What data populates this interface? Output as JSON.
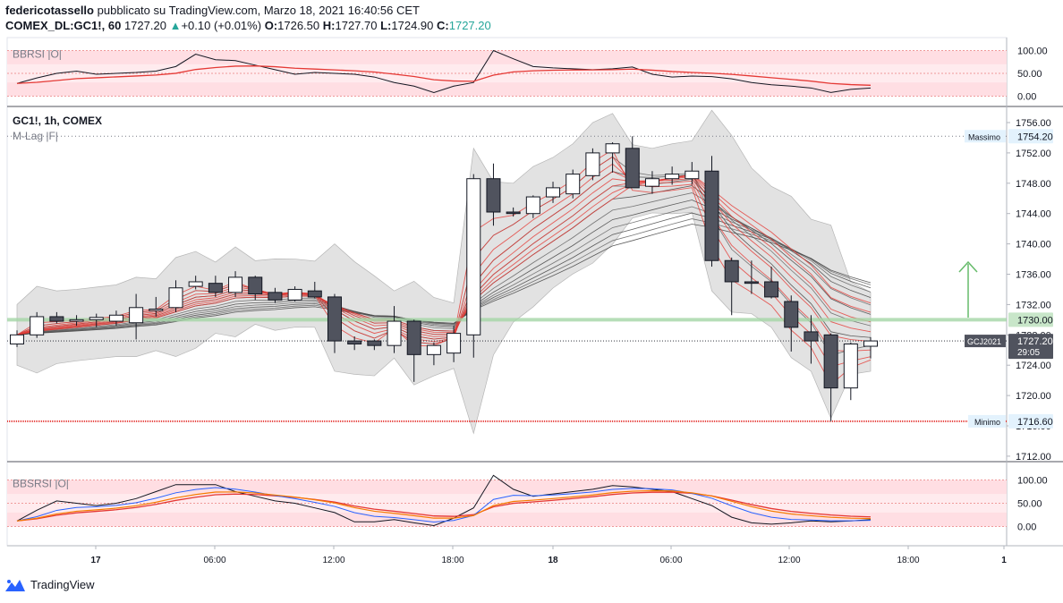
{
  "header": {
    "author": "federicotassello",
    "published": "pubblicato su TradingView.com, Marzo 18, 2021 16:40:56 CET",
    "symbol": "COMEX_DL:GC1!, 60",
    "last": "1727.20",
    "change": "+0.10 (+0.01%)",
    "open_label": "O:",
    "open": "1726.50",
    "high_label": "H:",
    "high": "1727.70",
    "low_label": "L:",
    "low": "1724.90",
    "close_label": "C:",
    "close": "1727.20"
  },
  "panes": {
    "top_indicator": {
      "label": "BBRSI |O|",
      "ticks": [
        "100.00",
        "50.00",
        "0.00"
      ]
    },
    "main": {
      "title": "GC1!, 1h, COMEX",
      "indicator": "M-Lag |F|",
      "ticks": [
        "1756.00",
        "1752.00",
        "1748.00",
        "1744.00",
        "1740.00",
        "1736.00",
        "1732.00",
        "1728.00",
        "1724.00",
        "1720.00",
        "1716.00",
        "1712.00"
      ],
      "max_label": "Massimo",
      "max_value": "1754.20",
      "min_label": "Minimo",
      "min_value": "1716.60",
      "level_value": "1730.00",
      "contract_label": "GCJ2021",
      "price_tag": "1727.20",
      "countdown": "29:05"
    },
    "bottom_indicator": {
      "label": "BBSRSI |O|",
      "ticks": [
        "100.00",
        "50.00",
        "0.00"
      ]
    }
  },
  "time_axis": [
    "17",
    "06:00",
    "12:00",
    "18:00",
    "18",
    "06:00",
    "12:00",
    "18:00",
    "1"
  ],
  "footer": {
    "brand": "TradingView"
  },
  "colors": {
    "up": "#ffffff",
    "down": "#50535e",
    "red": "#e53935",
    "green_level": "#a5d6a7",
    "band": "#d9d9d9",
    "accent": "#26a69a"
  },
  "chart_data": {
    "type": "candlestick",
    "title": "GC1!, 1h, COMEX",
    "ylim": [
      1710,
      1758
    ],
    "candles": [
      {
        "o": 1726.8,
        "h": 1728.6,
        "l": 1726.4,
        "c": 1728.0
      },
      {
        "o": 1728.0,
        "h": 1731.0,
        "l": 1727.6,
        "c": 1730.4
      },
      {
        "o": 1730.4,
        "h": 1731.0,
        "l": 1729.5,
        "c": 1729.8
      },
      {
        "o": 1729.8,
        "h": 1730.6,
        "l": 1729.2,
        "c": 1730.0
      },
      {
        "o": 1730.0,
        "h": 1730.8,
        "l": 1729.0,
        "c": 1730.3
      },
      {
        "o": 1729.8,
        "h": 1731.2,
        "l": 1729.2,
        "c": 1730.6
      },
      {
        "o": 1729.6,
        "h": 1733.4,
        "l": 1727.4,
        "c": 1731.6
      },
      {
        "o": 1731.2,
        "h": 1733.0,
        "l": 1730.4,
        "c": 1731.4
      },
      {
        "o": 1731.6,
        "h": 1735.2,
        "l": 1731.0,
        "c": 1734.2
      },
      {
        "o": 1734.4,
        "h": 1735.8,
        "l": 1734.0,
        "c": 1735.0
      },
      {
        "o": 1734.8,
        "h": 1735.8,
        "l": 1733.0,
        "c": 1733.6
      },
      {
        "o": 1733.6,
        "h": 1736.4,
        "l": 1733.0,
        "c": 1735.6
      },
      {
        "o": 1735.6,
        "h": 1735.8,
        "l": 1732.6,
        "c": 1733.4
      },
      {
        "o": 1733.6,
        "h": 1734.2,
        "l": 1732.2,
        "c": 1732.6
      },
      {
        "o": 1732.6,
        "h": 1734.4,
        "l": 1732.4,
        "c": 1734.0
      },
      {
        "o": 1733.8,
        "h": 1735.0,
        "l": 1732.8,
        "c": 1733.0
      },
      {
        "o": 1733.0,
        "h": 1733.4,
        "l": 1725.6,
        "c": 1727.2
      },
      {
        "o": 1727.2,
        "h": 1727.8,
        "l": 1726.0,
        "c": 1726.8
      },
      {
        "o": 1727.2,
        "h": 1727.4,
        "l": 1726.0,
        "c": 1726.6
      },
      {
        "o": 1726.6,
        "h": 1731.8,
        "l": 1725.6,
        "c": 1729.8
      },
      {
        "o": 1729.8,
        "h": 1730.0,
        "l": 1721.8,
        "c": 1725.4
      },
      {
        "o": 1725.4,
        "h": 1727.0,
        "l": 1724.0,
        "c": 1726.6
      },
      {
        "o": 1725.6,
        "h": 1729.2,
        "l": 1724.4,
        "c": 1728.2
      },
      {
        "o": 1728.0,
        "h": 1749.2,
        "l": 1725.0,
        "c": 1748.6
      },
      {
        "o": 1748.6,
        "h": 1750.6,
        "l": 1742.4,
        "c": 1744.2
      },
      {
        "o": 1744.2,
        "h": 1744.8,
        "l": 1743.6,
        "c": 1744.0
      },
      {
        "o": 1744.0,
        "h": 1746.4,
        "l": 1743.4,
        "c": 1746.2
      },
      {
        "o": 1746.2,
        "h": 1748.2,
        "l": 1745.4,
        "c": 1747.4
      },
      {
        "o": 1746.6,
        "h": 1749.8,
        "l": 1746.0,
        "c": 1749.2
      },
      {
        "o": 1749.0,
        "h": 1752.6,
        "l": 1748.4,
        "c": 1752.0
      },
      {
        "o": 1752.0,
        "h": 1753.4,
        "l": 1749.4,
        "c": 1753.2
      },
      {
        "o": 1752.6,
        "h": 1754.2,
        "l": 1747.4,
        "c": 1747.4
      },
      {
        "o": 1747.6,
        "h": 1749.6,
        "l": 1746.6,
        "c": 1748.6
      },
      {
        "o": 1748.6,
        "h": 1750.2,
        "l": 1747.8,
        "c": 1749.2
      },
      {
        "o": 1748.6,
        "h": 1750.8,
        "l": 1747.8,
        "c": 1749.6
      },
      {
        "o": 1749.6,
        "h": 1751.6,
        "l": 1737.0,
        "c": 1737.8
      },
      {
        "o": 1737.8,
        "h": 1738.2,
        "l": 1730.6,
        "c": 1735.0
      },
      {
        "o": 1735.0,
        "h": 1737.8,
        "l": 1733.4,
        "c": 1734.8
      },
      {
        "o": 1735.0,
        "h": 1737.0,
        "l": 1732.8,
        "c": 1733.0
      },
      {
        "o": 1732.4,
        "h": 1733.2,
        "l": 1725.8,
        "c": 1729.0
      },
      {
        "o": 1728.4,
        "h": 1730.6,
        "l": 1724.2,
        "c": 1727.2
      },
      {
        "o": 1728.0,
        "h": 1728.2,
        "l": 1716.6,
        "c": 1721.0
      },
      {
        "o": 1721.0,
        "h": 1727.0,
        "l": 1719.4,
        "c": 1726.8
      },
      {
        "o": 1726.5,
        "h": 1727.7,
        "l": 1724.9,
        "c": 1727.2
      }
    ],
    "levels": {
      "max": 1754.2,
      "min": 1716.6,
      "horizontal": 1730.0
    },
    "bbrsi_top": [
      28,
      40,
      50,
      55,
      48,
      50,
      52,
      55,
      65,
      92,
      80,
      78,
      68,
      58,
      48,
      52,
      50,
      48,
      42,
      30,
      22,
      8,
      22,
      30,
      100,
      82,
      65,
      62,
      60,
      58,
      60,
      64,
      48,
      42,
      44,
      43,
      38,
      30,
      25,
      22,
      18,
      8,
      15,
      18
    ],
    "bbsrsi_bottom": [
      12,
      35,
      55,
      50,
      45,
      50,
      60,
      75,
      90,
      90,
      90,
      75,
      65,
      55,
      50,
      40,
      30,
      10,
      10,
      15,
      8,
      2,
      18,
      40,
      110,
      80,
      65,
      70,
      75,
      80,
      88,
      85,
      80,
      75,
      60,
      45,
      20,
      8,
      5,
      8,
      12,
      10,
      12,
      15
    ]
  }
}
